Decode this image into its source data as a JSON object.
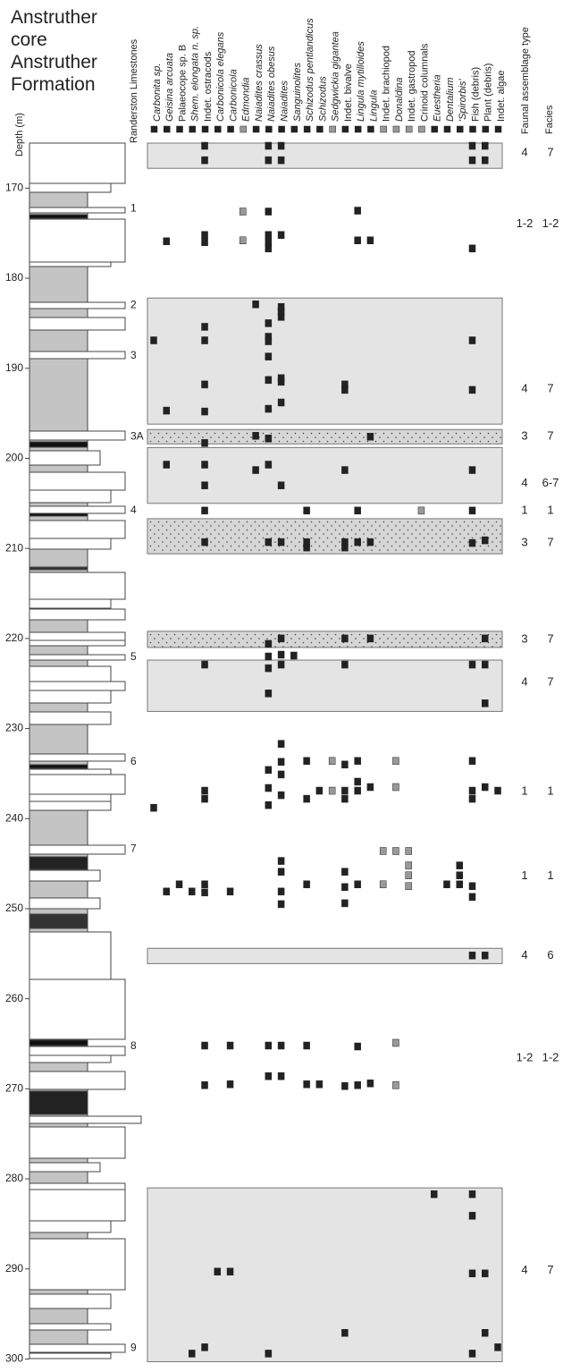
{
  "title": [
    "Anstruther",
    "core",
    "Anstruther",
    "Formation"
  ],
  "depth_axis": {
    "label": "Depth (m)",
    "lim": [
      165,
      300.5
    ],
    "ticks": [
      170,
      180,
      190,
      200,
      210,
      220,
      230,
      240,
      250,
      260,
      270,
      280,
      290,
      300
    ]
  },
  "limestones": {
    "label": "Randerston Limestones",
    "items": [
      {
        "name": "1",
        "depth": 172.3
      },
      {
        "name": "2",
        "depth": 183.0
      },
      {
        "name": "3",
        "depth": 188.6
      },
      {
        "name": "3A",
        "depth": 197.6
      },
      {
        "name": "4",
        "depth": 205.8
      },
      {
        "name": "5",
        "depth": 222.1
      },
      {
        "name": "6",
        "depth": 233.7
      },
      {
        "name": "7",
        "depth": 243.4
      },
      {
        "name": "8",
        "depth": 265.3
      },
      {
        "name": "9",
        "depth": 298.8
      }
    ]
  },
  "taxa": [
    {
      "name": "Carbonita sp.",
      "italic": true,
      "color": "#222",
      "depths": [
        186.9,
        238.8
      ]
    },
    {
      "name": "Geisina arcuata",
      "italic": true,
      "color": "#222",
      "depths": [
        175.9,
        194.7,
        200.7,
        248.1
      ]
    },
    {
      "name": "Palaeocope sp. B",
      "italic": false,
      "color": "#222",
      "depths": [
        247.3
      ]
    },
    {
      "name": "Shem. elongata n. sp.",
      "italic": true,
      "color": "#222",
      "depths": [
        248.1,
        299.4
      ]
    },
    {
      "name": "Indet. ostracods",
      "italic": false,
      "color": "#222",
      "depths": [
        165.3,
        166.9,
        175.2,
        176.0,
        185.4,
        186.9,
        191.8,
        194.8,
        198.3,
        200.7,
        203.0,
        205.8,
        209.3,
        222.9,
        236.9,
        237.8,
        247.3,
        248.2,
        265.2,
        269.6,
        298.7
      ]
    },
    {
      "name": "Carbonicola elegans",
      "italic": true,
      "color": "#222",
      "depths": [
        290.3
      ]
    },
    {
      "name": "Carbonicola",
      "italic": true,
      "color": "#222",
      "depths": [
        248.1,
        265.2,
        269.5,
        290.3
      ]
    },
    {
      "name": "Edmondia",
      "italic": true,
      "color": "#999",
      "depths": [
        172.6,
        175.8
      ]
    },
    {
      "name": "Naiadites crassus",
      "italic": true,
      "color": "#222",
      "depths": [
        182.9,
        197.5,
        201.3
      ]
    },
    {
      "name": "Naiadites obesus",
      "italic": true,
      "color": "#222",
      "depths": [
        165.3,
        166.9,
        172.6,
        175.2,
        176.0,
        176.7,
        185.0,
        186.5,
        187.0,
        188.7,
        191.3,
        194.5,
        197.8,
        200.7,
        209.3,
        220.6,
        222.0,
        223.3,
        226.1,
        234.6,
        236.6,
        238.5,
        265.2,
        268.6,
        299.4
      ]
    },
    {
      "name": "Naiadites",
      "italic": true,
      "color": "#222",
      "depths": [
        165.3,
        166.9,
        175.2,
        183.2,
        183.7,
        184.3,
        191.1,
        191.5,
        193.8,
        203.0,
        209.3,
        220.0,
        221.8,
        222.9,
        231.7,
        233.7,
        235.1,
        237.4,
        244.7,
        245.9,
        248.1,
        249.5,
        265.2,
        268.6
      ]
    },
    {
      "name": "Sanguinolites",
      "italic": true,
      "color": "#222",
      "depths": [
        221.9
      ]
    },
    {
      "name": "Schizodus pentlandicus",
      "italic": true,
      "color": "#222",
      "depths": [
        205.8,
        209.3,
        209.9,
        233.6,
        237.8,
        247.3,
        265.2,
        269.5
      ]
    },
    {
      "name": "Schizodus",
      "italic": true,
      "color": "#222",
      "depths": [
        236.9,
        269.5
      ]
    },
    {
      "name": "Sedgwickia gigantea",
      "italic": true,
      "color": "#999",
      "depths": [
        233.6,
        236.9
      ]
    },
    {
      "name": "Indet. bivalve",
      "italic": false,
      "color": "#222",
      "depths": [
        191.8,
        192.4,
        201.3,
        209.3,
        209.9,
        220.0,
        222.9,
        234.0,
        236.9,
        237.8,
        245.9,
        247.6,
        249.4,
        269.7,
        297.1
      ]
    },
    {
      "name": "Lingula mytilloides",
      "italic": true,
      "color": "#222",
      "depths": [
        172.5,
        175.8,
        205.8,
        209.3,
        233.6,
        235.9,
        236.9,
        247.3,
        265.3,
        269.6
      ]
    },
    {
      "name": "Lingula",
      "italic": true,
      "color": "#222",
      "depths": [
        175.8,
        197.6,
        209.3,
        220.0,
        236.5,
        269.4
      ]
    },
    {
      "name": "Indet. brachiopod",
      "italic": false,
      "color": "#999",
      "depths": [
        243.6,
        247.3
      ]
    },
    {
      "name": "Donaldina",
      "italic": true,
      "color": "#999",
      "depths": [
        233.6,
        236.5,
        243.6,
        264.9,
        269.6
      ]
    },
    {
      "name": "Indet. gastropod",
      "italic": false,
      "color": "#999",
      "depths": [
        243.6,
        245.2,
        246.3,
        247.5
      ]
    },
    {
      "name": "Crinoid columnals",
      "italic": false,
      "color": "#999",
      "depths": [
        205.8
      ]
    },
    {
      "name": "Euestheria",
      "italic": true,
      "color": "#222",
      "depths": [
        281.7
      ]
    },
    {
      "name": "Dentalium",
      "italic": true,
      "color": "#222",
      "depths": [
        247.3
      ]
    },
    {
      "name": "'Spirorbis'",
      "italic": true,
      "color": "#222",
      "depths": [
        245.2,
        246.3,
        247.3
      ]
    },
    {
      "name": "Fish (debris)",
      "italic": false,
      "color": "#222",
      "depths": [
        165.3,
        166.9,
        176.7,
        186.9,
        192.4,
        201.3,
        205.8,
        209.4,
        222.9,
        233.6,
        236.9,
        237.8,
        247.5,
        248.7,
        255.2,
        281.7,
        284.1,
        290.5,
        299.4
      ]
    },
    {
      "name": "Plant (debris)",
      "italic": false,
      "color": "#222",
      "depths": [
        165.3,
        166.9,
        209.1,
        220.0,
        222.9,
        227.2,
        236.5,
        255.2,
        290.5,
        297.1
      ]
    },
    {
      "name": "Indet. algae",
      "italic": false,
      "color": "#222",
      "depths": [
        236.9,
        298.7
      ]
    }
  ],
  "assemblage_header": "Faunal assemblage type",
  "facies_header": "Facies",
  "intervals": [
    {
      "top": 165.0,
      "bottom": 167.8,
      "pattern": "plain",
      "depth": 166.1,
      "type": "4",
      "facies": "7"
    },
    {
      "depth": 174.0,
      "type": "1-2",
      "facies": "1-2"
    },
    {
      "top": 182.2,
      "bottom": 196.2,
      "pattern": "plain",
      "depth": 192.3,
      "type": "4",
      "facies": "7"
    },
    {
      "top": 196.8,
      "bottom": 198.4,
      "pattern": "dotted",
      "depth": 197.6,
      "type": "3",
      "facies": "7"
    },
    {
      "top": 198.8,
      "bottom": 205.0,
      "pattern": "plain",
      "depth": 202.8,
      "type": "4",
      "facies": "6-7"
    },
    {
      "depth": 205.8,
      "type": "1",
      "facies": "1"
    },
    {
      "top": 206.7,
      "bottom": 210.6,
      "pattern": "dotted",
      "depth": 209.4,
      "type": "3",
      "facies": "7"
    },
    {
      "top": 219.2,
      "bottom": 221.0,
      "pattern": "dotted",
      "depth": 220.1,
      "type": "3",
      "facies": "7"
    },
    {
      "top": 222.4,
      "bottom": 228.1,
      "pattern": "plain",
      "depth": 224.9,
      "type": "4",
      "facies": "7"
    },
    {
      "depth": 237.0,
      "type": "1",
      "facies": "1"
    },
    {
      "depth": 246.4,
      "type": "1",
      "facies": "1"
    },
    {
      "top": 254.4,
      "bottom": 256.1,
      "pattern": "plain",
      "depth": 255.2,
      "type": "4",
      "facies": "6"
    },
    {
      "depth": 266.6,
      "type": "1-2",
      "facies": "1-2"
    },
    {
      "top": 281.0,
      "bottom": 300.3,
      "pattern": "plain",
      "depth": 290.2,
      "type": "4",
      "facies": "7"
    }
  ]
}
